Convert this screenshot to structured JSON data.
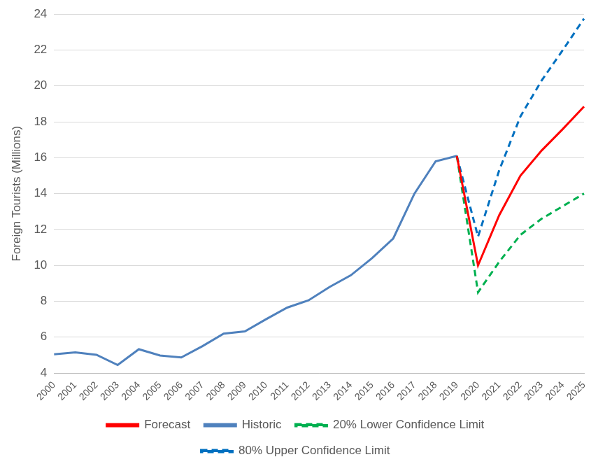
{
  "chart_data": {
    "type": "line",
    "y_label": "Foreign Tourists (Millions)",
    "categories": [
      "2000",
      "2001",
      "2002",
      "2003",
      "2004",
      "2005",
      "2006",
      "2007",
      "2008",
      "2009",
      "2010",
      "2011",
      "2012",
      "2013",
      "2014",
      "2015",
      "2016",
      "2017",
      "2018",
      "2019",
      "2020",
      "2021",
      "2022",
      "2023",
      "2024",
      "2025"
    ],
    "series": [
      {
        "name": "Historic",
        "color": "#4f81bd",
        "line_style": "solid",
        "values": [
          5.05,
          5.15,
          5.02,
          4.45,
          5.33,
          4.98,
          4.87,
          5.5,
          6.2,
          6.32,
          7.0,
          7.65,
          8.05,
          8.8,
          9.45,
          10.4,
          11.5,
          14.0,
          15.8,
          16.1,
          null,
          null,
          null,
          null,
          null,
          null
        ]
      },
      {
        "name": "20% Lower Confidence Limit",
        "color": "#00b050",
        "line_style": "dashed",
        "values": [
          null,
          null,
          null,
          null,
          null,
          null,
          null,
          null,
          null,
          null,
          null,
          null,
          null,
          null,
          null,
          null,
          null,
          null,
          null,
          16.1,
          8.5,
          10.2,
          11.7,
          12.6,
          13.3,
          14.0
        ]
      },
      {
        "name": "Forecast",
        "color": "#ff0000",
        "line_style": "solid",
        "values": [
          null,
          null,
          null,
          null,
          null,
          null,
          null,
          null,
          null,
          null,
          null,
          null,
          null,
          null,
          null,
          null,
          null,
          null,
          null,
          16.1,
          10.0,
          12.8,
          15.0,
          16.4,
          17.6,
          18.85
        ]
      },
      {
        "name": "80% Upper Confidence Limit",
        "color": "#0070c0",
        "line_style": "dashed",
        "values": [
          null,
          null,
          null,
          null,
          null,
          null,
          null,
          null,
          null,
          null,
          null,
          null,
          null,
          null,
          null,
          null,
          null,
          null,
          null,
          16.1,
          11.6,
          15.3,
          18.3,
          20.3,
          22.0,
          23.75
        ]
      }
    ],
    "ylim": [
      4,
      24
    ],
    "yticks": [
      4,
      6,
      8,
      10,
      12,
      14,
      16,
      18,
      20,
      22,
      24
    ],
    "grid": true,
    "legend": "bottom"
  }
}
